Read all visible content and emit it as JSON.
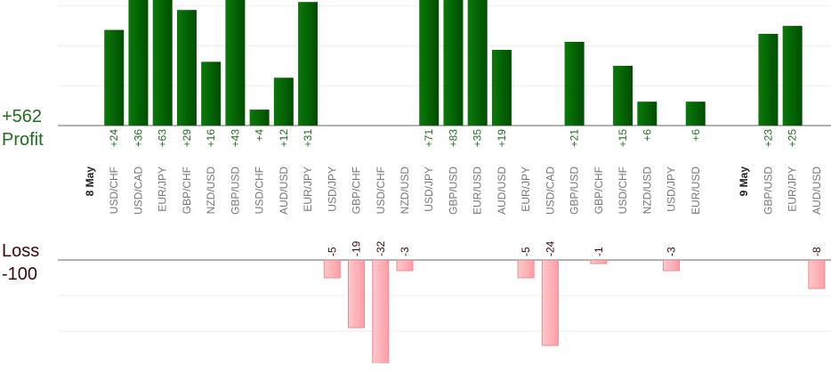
{
  "chart_data": {
    "type": "bar",
    "categories": [
      "8 May",
      "USD/CHF",
      "USD/CAD",
      "EUR/JPY",
      "GBP/CHF",
      "NZD/USD",
      "GBP/USD",
      "USD/CHF",
      "AUD/USD",
      "EUR/JPY",
      "USD/JPY",
      "GBP/CHF",
      "USD/CHF",
      "NZD/USD",
      "USD/JPY",
      "GBP/USD",
      "EUR/USD",
      "AUD/USD",
      "EUR/JPY",
      "USD/CAD",
      "GBP/USD",
      "GBP/CHF",
      "USD/CHF",
      "NZD/USD",
      "USD/JPY",
      "EUR/USD",
      null,
      "9 May",
      "GBP/USD",
      "EUR/JPY",
      "AUD/USD"
    ],
    "date_labels": [
      "8 May",
      "9 May"
    ],
    "series": [
      {
        "name": "Profit",
        "color": "#006400",
        "total": 562,
        "total_label": "+562",
        "values": [
          null,
          24,
          36,
          63,
          29,
          16,
          43,
          4,
          12,
          31,
          null,
          null,
          null,
          null,
          71,
          83,
          35,
          19,
          null,
          null,
          21,
          null,
          15,
          6,
          null,
          6,
          null,
          null,
          23,
          25,
          null
        ],
        "value_labels": [
          null,
          "+24",
          "+36",
          "+63",
          "+29",
          "+16",
          "+43",
          "+4",
          "+12",
          "+31",
          null,
          null,
          null,
          null,
          "+71",
          "+83",
          "+35",
          "+19",
          null,
          null,
          "+21",
          null,
          "+15",
          "+6",
          null,
          "+6",
          null,
          null,
          "+23",
          "+25",
          null
        ]
      },
      {
        "name": "Loss",
        "color": "#ffb3b8",
        "axis": "y2",
        "total": -100,
        "total_label": "-100",
        "values": [
          null,
          null,
          null,
          null,
          null,
          null,
          null,
          null,
          null,
          null,
          -5,
          -19,
          -32,
          -3,
          null,
          null,
          null,
          null,
          -5,
          -24,
          null,
          -1,
          null,
          null,
          -3,
          null,
          null,
          null,
          null,
          null,
          -8
        ],
        "value_labels": [
          null,
          null,
          null,
          null,
          null,
          null,
          null,
          null,
          null,
          null,
          "-5",
          "-19",
          "-32",
          "-3",
          null,
          null,
          null,
          null,
          "-5",
          "-24",
          null,
          "-1",
          null,
          null,
          "-3",
          null,
          null,
          null,
          null,
          null,
          "-8"
        ]
      }
    ],
    "ylim": [
      0,
      31.5
    ],
    "yticks": [
      0,
      10,
      20,
      30
    ],
    "y2lim": [
      -29,
      0
    ],
    "y2ticks": [
      0,
      -10,
      -20
    ],
    "grid": true
  }
}
